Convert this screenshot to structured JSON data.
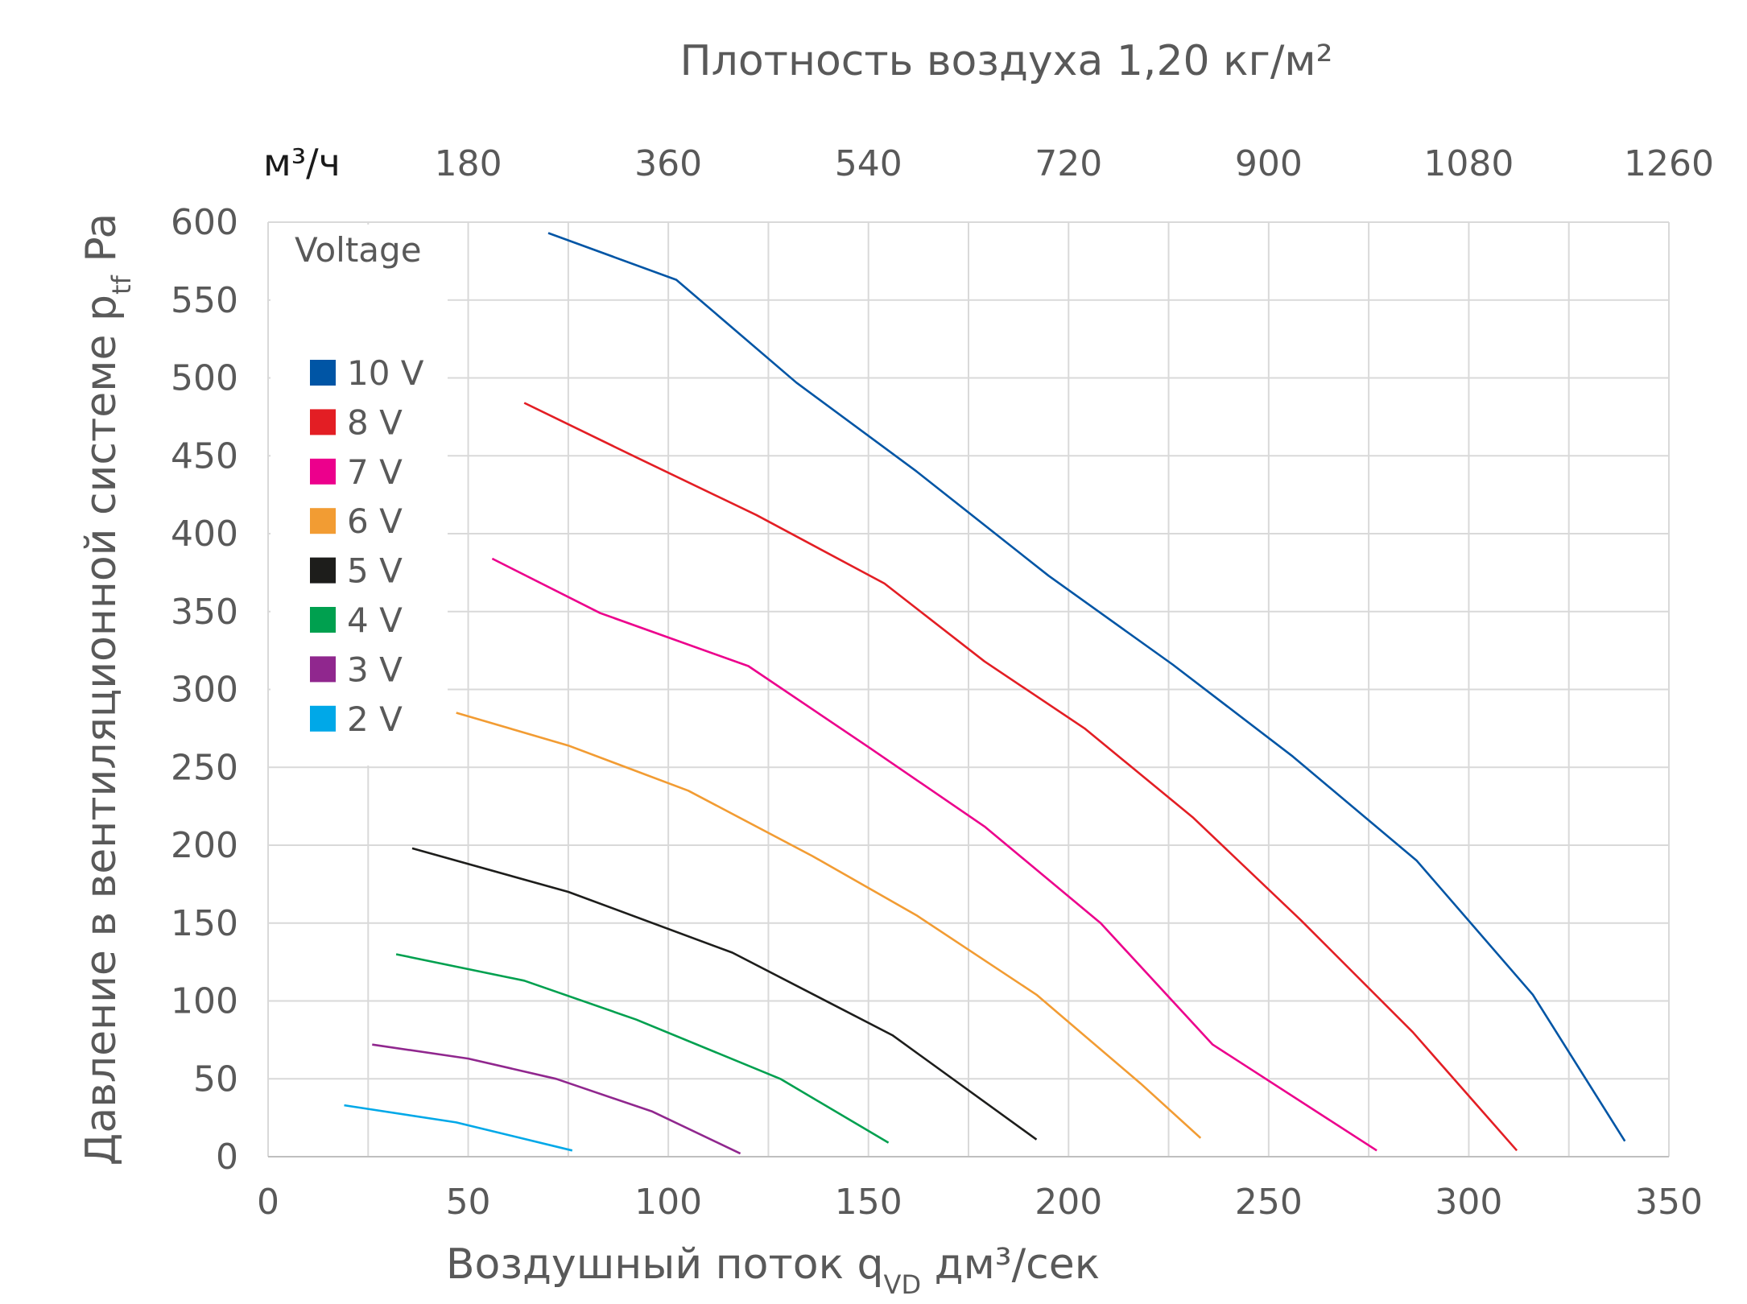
{
  "chart_data": {
    "type": "line",
    "title": "Плотность воздуха 1,20 кг/м²",
    "xlabel": "Воздушный поток q",
    "xlabel_sub": "VD",
    "xlabel_unit": "дм³/сек",
    "ylabel": "Давление в вентиляционной системе p",
    "ylabel_sub": "tf",
    "ylabel_unit": "Pa",
    "xlim": [
      0,
      350
    ],
    "ylim": [
      0,
      600
    ],
    "x_ticks": [
      0,
      50,
      100,
      150,
      200,
      250,
      300,
      350
    ],
    "y_ticks": [
      0,
      50,
      100,
      150,
      200,
      250,
      300,
      350,
      400,
      450,
      500,
      550,
      600
    ],
    "top_axis": {
      "unit_label": "м³/ч",
      "ticks": [
        {
          "label": "180",
          "value": 50
        },
        {
          "label": "360",
          "value": 100
        },
        {
          "label": "540",
          "value": 150
        },
        {
          "label": "720",
          "value": 200
        },
        {
          "label": "900",
          "value": 250
        },
        {
          "label": "1080",
          "value": 300
        },
        {
          "label": "1260",
          "value": 350
        }
      ]
    },
    "grid": true,
    "legend": {
      "title": "Voltage",
      "position": "top-left"
    },
    "series": [
      {
        "name": "10 V",
        "color": "#0055a5",
        "points": [
          [
            70,
            593
          ],
          [
            102,
            563
          ],
          [
            132,
            497
          ],
          [
            162,
            440
          ],
          [
            195,
            373
          ],
          [
            226,
            316
          ],
          [
            256,
            257
          ],
          [
            287,
            190
          ],
          [
            316,
            104
          ],
          [
            339,
            10
          ]
        ]
      },
      {
        "name": "8 V",
        "color": "#e31e24",
        "points": [
          [
            64,
            484
          ],
          [
            92,
            449
          ],
          [
            122,
            412
          ],
          [
            154,
            368
          ],
          [
            179,
            318
          ],
          [
            204,
            275
          ],
          [
            231,
            218
          ],
          [
            258,
            152
          ],
          [
            286,
            80
          ],
          [
            312,
            4
          ]
        ]
      },
      {
        "name": "7 V",
        "color": "#ec008c",
        "points": [
          [
            56,
            384
          ],
          [
            83,
            349
          ],
          [
            120,
            315
          ],
          [
            150,
            263
          ],
          [
            179,
            212
          ],
          [
            208,
            150
          ],
          [
            236,
            72
          ],
          [
            277,
            4
          ]
        ]
      },
      {
        "name": "6 V",
        "color": "#f29c33",
        "points": [
          [
            47,
            285
          ],
          [
            75,
            264
          ],
          [
            105,
            235
          ],
          [
            136,
            193
          ],
          [
            162,
            155
          ],
          [
            192,
            104
          ],
          [
            218,
            47
          ],
          [
            233,
            12
          ]
        ]
      },
      {
        "name": "5 V",
        "color": "#1d1d1b",
        "points": [
          [
            36,
            198
          ],
          [
            75,
            170
          ],
          [
            116,
            131
          ],
          [
            156,
            78
          ],
          [
            192,
            11
          ]
        ]
      },
      {
        "name": "4 V",
        "color": "#00a04f",
        "points": [
          [
            32,
            130
          ],
          [
            64,
            113
          ],
          [
            92,
            88
          ],
          [
            128,
            50
          ],
          [
            155,
            9
          ]
        ]
      },
      {
        "name": "3 V",
        "color": "#90278e",
        "points": [
          [
            26,
            72
          ],
          [
            50,
            63
          ],
          [
            72,
            50
          ],
          [
            96,
            29
          ],
          [
            118,
            2
          ]
        ]
      },
      {
        "name": "2 V",
        "color": "#00a8e8",
        "points": [
          [
            19,
            33
          ],
          [
            47,
            22
          ],
          [
            76,
            4
          ]
        ]
      }
    ]
  }
}
